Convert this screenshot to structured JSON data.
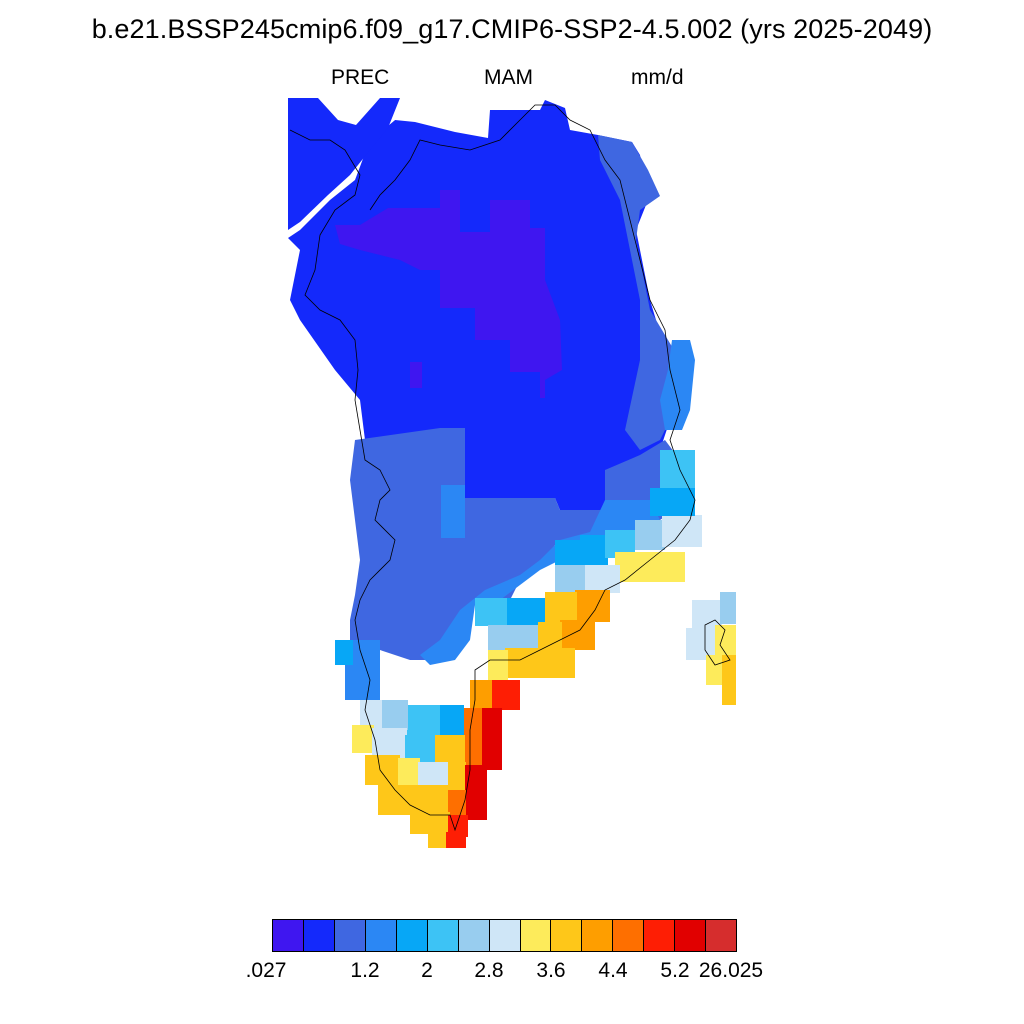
{
  "header": {
    "title": "b.e21.BSSP245cmip6.f09_g17.CMIP6-SSP2-4.5.002 (yrs 2025-2049)",
    "variable": "PREC",
    "season": "MAM",
    "units": "mm/d"
  },
  "colorbar": {
    "colors": [
      "#3f16f0",
      "#1429fb",
      "#3f67e1",
      "#2b87f4",
      "#07a7f6",
      "#3dc3f5",
      "#98cdef",
      "#cfe6f7",
      "#fdeb5b",
      "#fec719",
      "#fe9e00",
      "#fe6f00",
      "#fe1e04",
      "#e10000",
      "#d62d2d"
    ],
    "labels": [
      ".027",
      "1.2",
      "2",
      "2.8",
      "3.6",
      "4.4",
      "5.2",
      "26.025"
    ]
  },
  "map": {
    "region": "Greenland",
    "field": "PREC",
    "season": "MAM",
    "levels": [
      0.027,
      0.4,
      0.8,
      1.2,
      1.6,
      2.0,
      2.4,
      2.8,
      3.2,
      3.6,
      4.0,
      4.4,
      4.8,
      5.2,
      26.025
    ]
  }
}
